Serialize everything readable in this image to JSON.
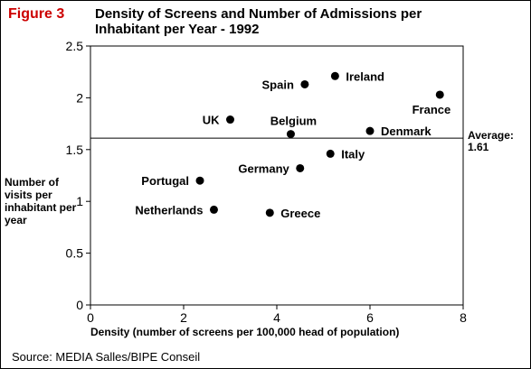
{
  "figure_label": "Figure 3",
  "source_note": "Source: MEDIA Salles/BIPE Conseil",
  "chart_data": {
    "type": "scatter",
    "title": "Density of Screens and Number of Admissions per Inhabitant per Year - 1992",
    "xlabel": "Density (number of screens per 100,000 head of population)",
    "ylabel": "Number of visits per inhabitant per year",
    "xlim": [
      0,
      8
    ],
    "ylim": [
      0,
      2.5
    ],
    "xticks": [
      0,
      2,
      4,
      6,
      8
    ],
    "xtick_labels": [
      "0",
      "2",
      "4",
      "6",
      "8"
    ],
    "yticks": [
      0,
      0.5,
      1,
      1.5,
      2,
      2.5
    ],
    "ytick_labels": [
      "0",
      "0.5",
      "1",
      "1.5",
      "2",
      "2.5"
    ],
    "grid": false,
    "reference_line": {
      "y": 1.61,
      "label": "Average: 1.61"
    },
    "points": [
      {
        "label": "Spain",
        "x": 4.6,
        "y": 2.13,
        "label_side": "left"
      },
      {
        "label": "Ireland",
        "x": 5.25,
        "y": 2.21,
        "label_side": "right"
      },
      {
        "label": "France",
        "x": 7.5,
        "y": 2.03,
        "label_side": "below-left"
      },
      {
        "label": "UK",
        "x": 3.0,
        "y": 1.79,
        "label_side": "left"
      },
      {
        "label": "Belgium",
        "x": 4.3,
        "y": 1.65,
        "label_side": "above"
      },
      {
        "label": "Denmark",
        "x": 6.0,
        "y": 1.68,
        "label_side": "right"
      },
      {
        "label": "Italy",
        "x": 5.15,
        "y": 1.46,
        "label_side": "right"
      },
      {
        "label": "Germany",
        "x": 4.5,
        "y": 1.32,
        "label_side": "left"
      },
      {
        "label": "Portugal",
        "x": 2.35,
        "y": 1.2,
        "label_side": "left"
      },
      {
        "label": "Netherlands",
        "x": 2.65,
        "y": 0.92,
        "label_side": "left"
      },
      {
        "label": "Greece",
        "x": 3.85,
        "y": 0.89,
        "label_side": "right"
      }
    ]
  }
}
